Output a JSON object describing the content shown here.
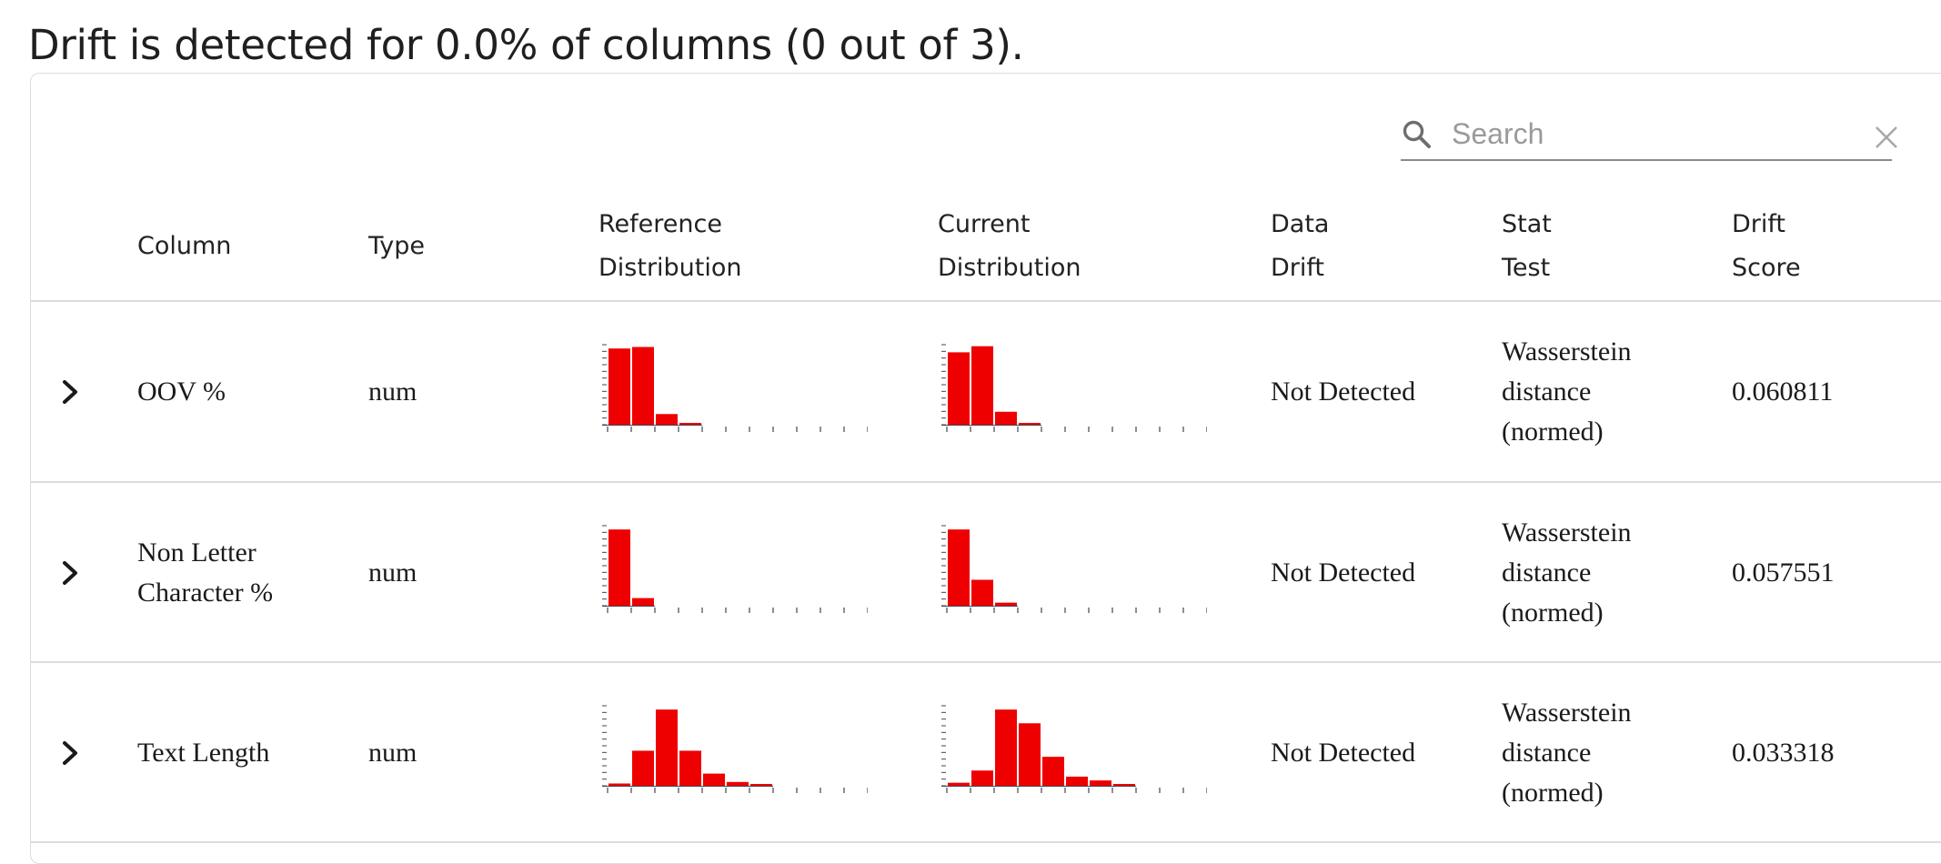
{
  "headline": "Drift is detected for 0.0% of columns (0 out of 3).",
  "search": {
    "placeholder": "Search"
  },
  "icons": {
    "search": "search-icon",
    "clear": "close-icon",
    "expand": "chevron-right-icon"
  },
  "colors": {
    "bar": "#ee0000",
    "axis": "#444455"
  },
  "columns": {
    "column": [
      "Column"
    ],
    "type": [
      "Type"
    ],
    "reference": [
      "Reference",
      "Distribution"
    ],
    "current": [
      "Current",
      "Distribution"
    ],
    "drift": [
      "Data",
      "Drift"
    ],
    "stat": [
      "Stat",
      "Test"
    ],
    "score": [
      "Drift",
      "Score"
    ]
  },
  "rows": [
    {
      "name": [
        "OOV %"
      ],
      "type": "num",
      "drift": "Not Detected",
      "stat": [
        "Wasserstein",
        "distance",
        "(normed)"
      ],
      "score": "0.060811",
      "reference_hist": [
        1.0,
        1.02,
        0.14,
        0.02,
        0,
        0,
        0,
        0,
        0,
        0,
        0
      ],
      "current_hist": [
        0.95,
        1.03,
        0.17,
        0.02,
        0,
        0,
        0,
        0,
        0,
        0,
        0
      ]
    },
    {
      "name": [
        "Non Letter",
        "Character %"
      ],
      "type": "num",
      "drift": "Not Detected",
      "stat": [
        "Wasserstein",
        "distance",
        "(normed)"
      ],
      "score": "0.057551",
      "reference_hist": [
        1.0,
        0.1,
        0,
        0,
        0,
        0,
        0,
        0,
        0,
        0,
        0
      ],
      "current_hist": [
        1.0,
        0.34,
        0.04,
        0,
        0,
        0,
        0,
        0,
        0,
        0,
        0
      ],
      "reference_binned": true
    },
    {
      "name": [
        "Text Length"
      ],
      "type": "num",
      "drift": "Not Detected",
      "stat": [
        "Wasserstein",
        "distance",
        "(normed)"
      ],
      "score": "0.033318",
      "reference_hist": [
        0.03,
        0.46,
        1.0,
        0.46,
        0.16,
        0.05,
        0.02,
        0,
        0,
        0,
        0
      ],
      "current_hist": [
        0.04,
        0.2,
        1.0,
        0.82,
        0.38,
        0.12,
        0.07,
        0.02,
        0,
        0,
        0
      ]
    }
  ]
}
